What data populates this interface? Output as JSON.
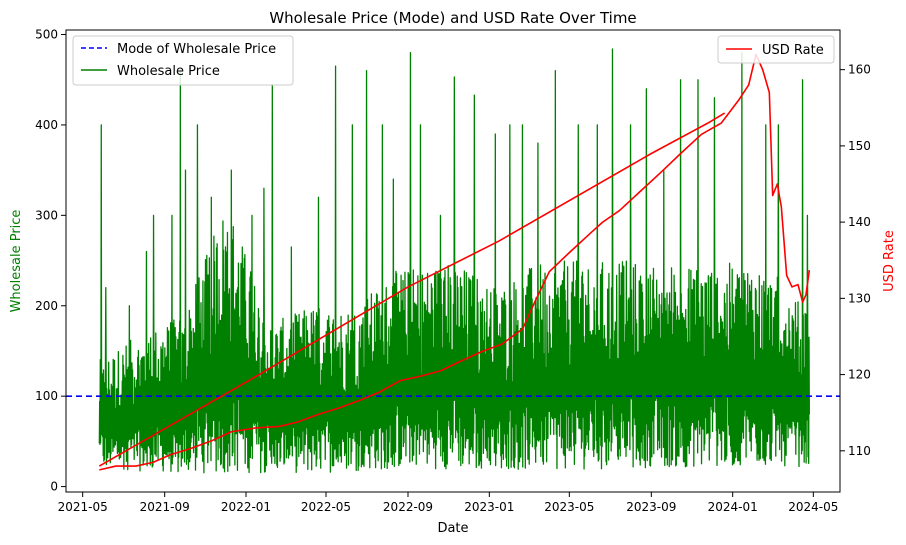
{
  "chart_data": {
    "type": "line",
    "title": "Wholesale Price (Mode) and USD Rate Over Time",
    "xlabel": "Date",
    "ylabel_left": "Wholesale Price",
    "ylabel_right": "USD Rate",
    "x_ticks": [
      "2021-05",
      "2021-09",
      "2022-01",
      "2022-05",
      "2022-09",
      "2023-01",
      "2023-05",
      "2023-09",
      "2024-01",
      "2024-05"
    ],
    "xlim": [
      "2021-04-06",
      "2024-06-10"
    ],
    "y_left": {
      "ticks": [
        0,
        100,
        200,
        300,
        400,
        500
      ],
      "ylim": [
        -6,
        505
      ],
      "color": "#008000"
    },
    "y_right": {
      "ticks": [
        110,
        120,
        130,
        140,
        150,
        160
      ],
      "ylim": [
        104.6,
        165.2
      ],
      "color": "#ff0000"
    },
    "mode_line": {
      "name": "Mode of Wholesale Price",
      "value": 100,
      "color": "#0000ff",
      "style": "dashed"
    },
    "wholesale_price": {
      "name": "Wholesale Price",
      "color": "#008000",
      "start": "2021-05-26",
      "end": "2024-04-25",
      "low_band": [
        [
          0,
          20
        ],
        [
          0.1,
          15
        ],
        [
          0.3,
          15
        ],
        [
          0.45,
          20
        ],
        [
          0.6,
          18
        ],
        [
          0.75,
          20
        ],
        [
          0.9,
          22
        ],
        [
          1,
          22
        ]
      ],
      "high_band": [
        [
          0,
          140
        ],
        [
          0.06,
          170
        ],
        [
          0.12,
          190
        ],
        [
          0.18,
          320
        ],
        [
          0.24,
          180
        ],
        [
          0.3,
          200
        ],
        [
          0.36,
          200
        ],
        [
          0.42,
          240
        ],
        [
          0.5,
          250
        ],
        [
          0.56,
          220
        ],
        [
          0.62,
          250
        ],
        [
          0.7,
          250
        ],
        [
          0.78,
          250
        ],
        [
          0.86,
          245
        ],
        [
          0.92,
          250
        ],
        [
          0.96,
          230
        ],
        [
          1,
          190
        ]
      ],
      "spikes": [
        {
          "date": "2021-05-29",
          "value": 400
        },
        {
          "date": "2021-06-05",
          "value": 220
        },
        {
          "date": "2021-07-10",
          "value": 200
        },
        {
          "date": "2021-08-05",
          "value": 260
        },
        {
          "date": "2021-08-15",
          "value": 300
        },
        {
          "date": "2021-09-12",
          "value": 300
        },
        {
          "date": "2021-09-25",
          "value": 460
        },
        {
          "date": "2021-10-02",
          "value": 350
        },
        {
          "date": "2021-10-20",
          "value": 400
        },
        {
          "date": "2021-11-10",
          "value": 320
        },
        {
          "date": "2021-12-10",
          "value": 350
        },
        {
          "date": "2022-01-10",
          "value": 300
        },
        {
          "date": "2022-01-28",
          "value": 330
        },
        {
          "date": "2022-02-10",
          "value": 445
        },
        {
          "date": "2022-03-10",
          "value": 265
        },
        {
          "date": "2022-04-20",
          "value": 320
        },
        {
          "date": "2022-05-15",
          "value": 465
        },
        {
          "date": "2022-06-10",
          "value": 400
        },
        {
          "date": "2022-07-01",
          "value": 460
        },
        {
          "date": "2022-07-25",
          "value": 400
        },
        {
          "date": "2022-08-10",
          "value": 340
        },
        {
          "date": "2022-09-05",
          "value": 480
        },
        {
          "date": "2022-09-20",
          "value": 400
        },
        {
          "date": "2022-10-20",
          "value": 300
        },
        {
          "date": "2022-11-10",
          "value": 453
        },
        {
          "date": "2022-12-10",
          "value": 433
        },
        {
          "date": "2023-01-10",
          "value": 390
        },
        {
          "date": "2023-02-01",
          "value": 400
        },
        {
          "date": "2023-02-20",
          "value": 400
        },
        {
          "date": "2023-03-15",
          "value": 380
        },
        {
          "date": "2023-04-10",
          "value": 460
        },
        {
          "date": "2023-05-15",
          "value": 400
        },
        {
          "date": "2023-06-12",
          "value": 400
        },
        {
          "date": "2023-07-05",
          "value": 484
        },
        {
          "date": "2023-08-01",
          "value": 400
        },
        {
          "date": "2023-08-25",
          "value": 440
        },
        {
          "date": "2023-09-20",
          "value": 350
        },
        {
          "date": "2023-10-15",
          "value": 450
        },
        {
          "date": "2023-11-10",
          "value": 450
        },
        {
          "date": "2023-12-05",
          "value": 430
        },
        {
          "date": "2024-01-15",
          "value": 480
        },
        {
          "date": "2024-02-20",
          "value": 400
        },
        {
          "date": "2024-03-10",
          "value": 400
        },
        {
          "date": "2024-04-15",
          "value": 450
        },
        {
          "date": "2024-04-22",
          "value": 300
        }
      ]
    },
    "usd_rate_lower": {
      "name": "USD Rate",
      "color": "#ff0000",
      "points": [
        [
          "2021-05-26",
          107.5
        ],
        [
          "2021-06-20",
          108.0
        ],
        [
          "2021-07-20",
          108.0
        ],
        [
          "2021-08-15",
          108.5
        ],
        [
          "2021-09-10",
          109.5
        ],
        [
          "2021-10-10",
          110.3
        ],
        [
          "2021-11-10",
          111.3
        ],
        [
          "2021-12-10",
          112.5
        ],
        [
          "2022-01-15",
          113.0
        ],
        [
          "2022-02-20",
          113.2
        ],
        [
          "2022-03-20",
          113.8
        ],
        [
          "2022-04-20",
          114.8
        ],
        [
          "2022-05-20",
          115.6
        ],
        [
          "2022-06-20",
          116.6
        ],
        [
          "2022-07-20",
          117.7
        ],
        [
          "2022-08-20",
          119.2
        ],
        [
          "2022-09-20",
          119.8
        ],
        [
          "2022-10-20",
          120.5
        ],
        [
          "2022-11-20",
          121.8
        ],
        [
          "2022-12-20",
          123.0
        ],
        [
          "2023-01-20",
          124.0
        ],
        [
          "2023-02-20",
          126.0
        ],
        [
          "2023-03-10",
          129.5
        ],
        [
          "2023-04-01",
          133.5
        ],
        [
          "2023-05-01",
          136.0
        ],
        [
          "2023-06-01",
          138.5
        ],
        [
          "2023-06-20",
          140.0
        ],
        [
          "2023-07-15",
          141.5
        ],
        [
          "2023-08-15",
          144.0
        ],
        [
          "2023-09-15",
          146.5
        ],
        [
          "2023-10-15",
          149.0
        ],
        [
          "2023-11-15",
          151.5
        ],
        [
          "2023-12-15",
          153.0
        ],
        [
          "2024-01-10",
          156.0
        ],
        [
          "2024-01-25",
          158.0
        ],
        [
          "2024-02-05",
          162.0
        ],
        [
          "2024-02-15",
          160.0
        ],
        [
          "2024-02-25",
          157.0
        ],
        [
          "2024-03-01",
          143.5
        ],
        [
          "2024-03-08",
          145.0
        ],
        [
          "2024-03-14",
          142.0
        ],
        [
          "2024-03-22",
          133.0
        ],
        [
          "2024-03-30",
          131.5
        ],
        [
          "2024-04-08",
          131.8
        ],
        [
          "2024-04-15",
          129.5
        ],
        [
          "2024-04-20",
          130.5
        ],
        [
          "2024-04-25",
          133.7
        ]
      ]
    },
    "usd_rate_upper": {
      "color": "#ff0000",
      "points": [
        [
          "2021-05-26",
          108.0
        ],
        [
          "2022-01-01",
          119.0
        ],
        [
          "2022-09-01",
          131.5
        ],
        [
          "2023-01-15",
          137.5
        ],
        [
          "2023-09-01",
          149.0
        ],
        [
          "2023-11-25",
          153.0
        ],
        [
          "2023-12-20",
          154.3
        ]
      ]
    },
    "legend_left_entries": [
      "Mode of Wholesale Price",
      "Wholesale Price"
    ],
    "legend_right_entries": [
      "USD Rate"
    ],
    "legend_left_placement": "top-left",
    "legend_right_placement": "top-right"
  }
}
